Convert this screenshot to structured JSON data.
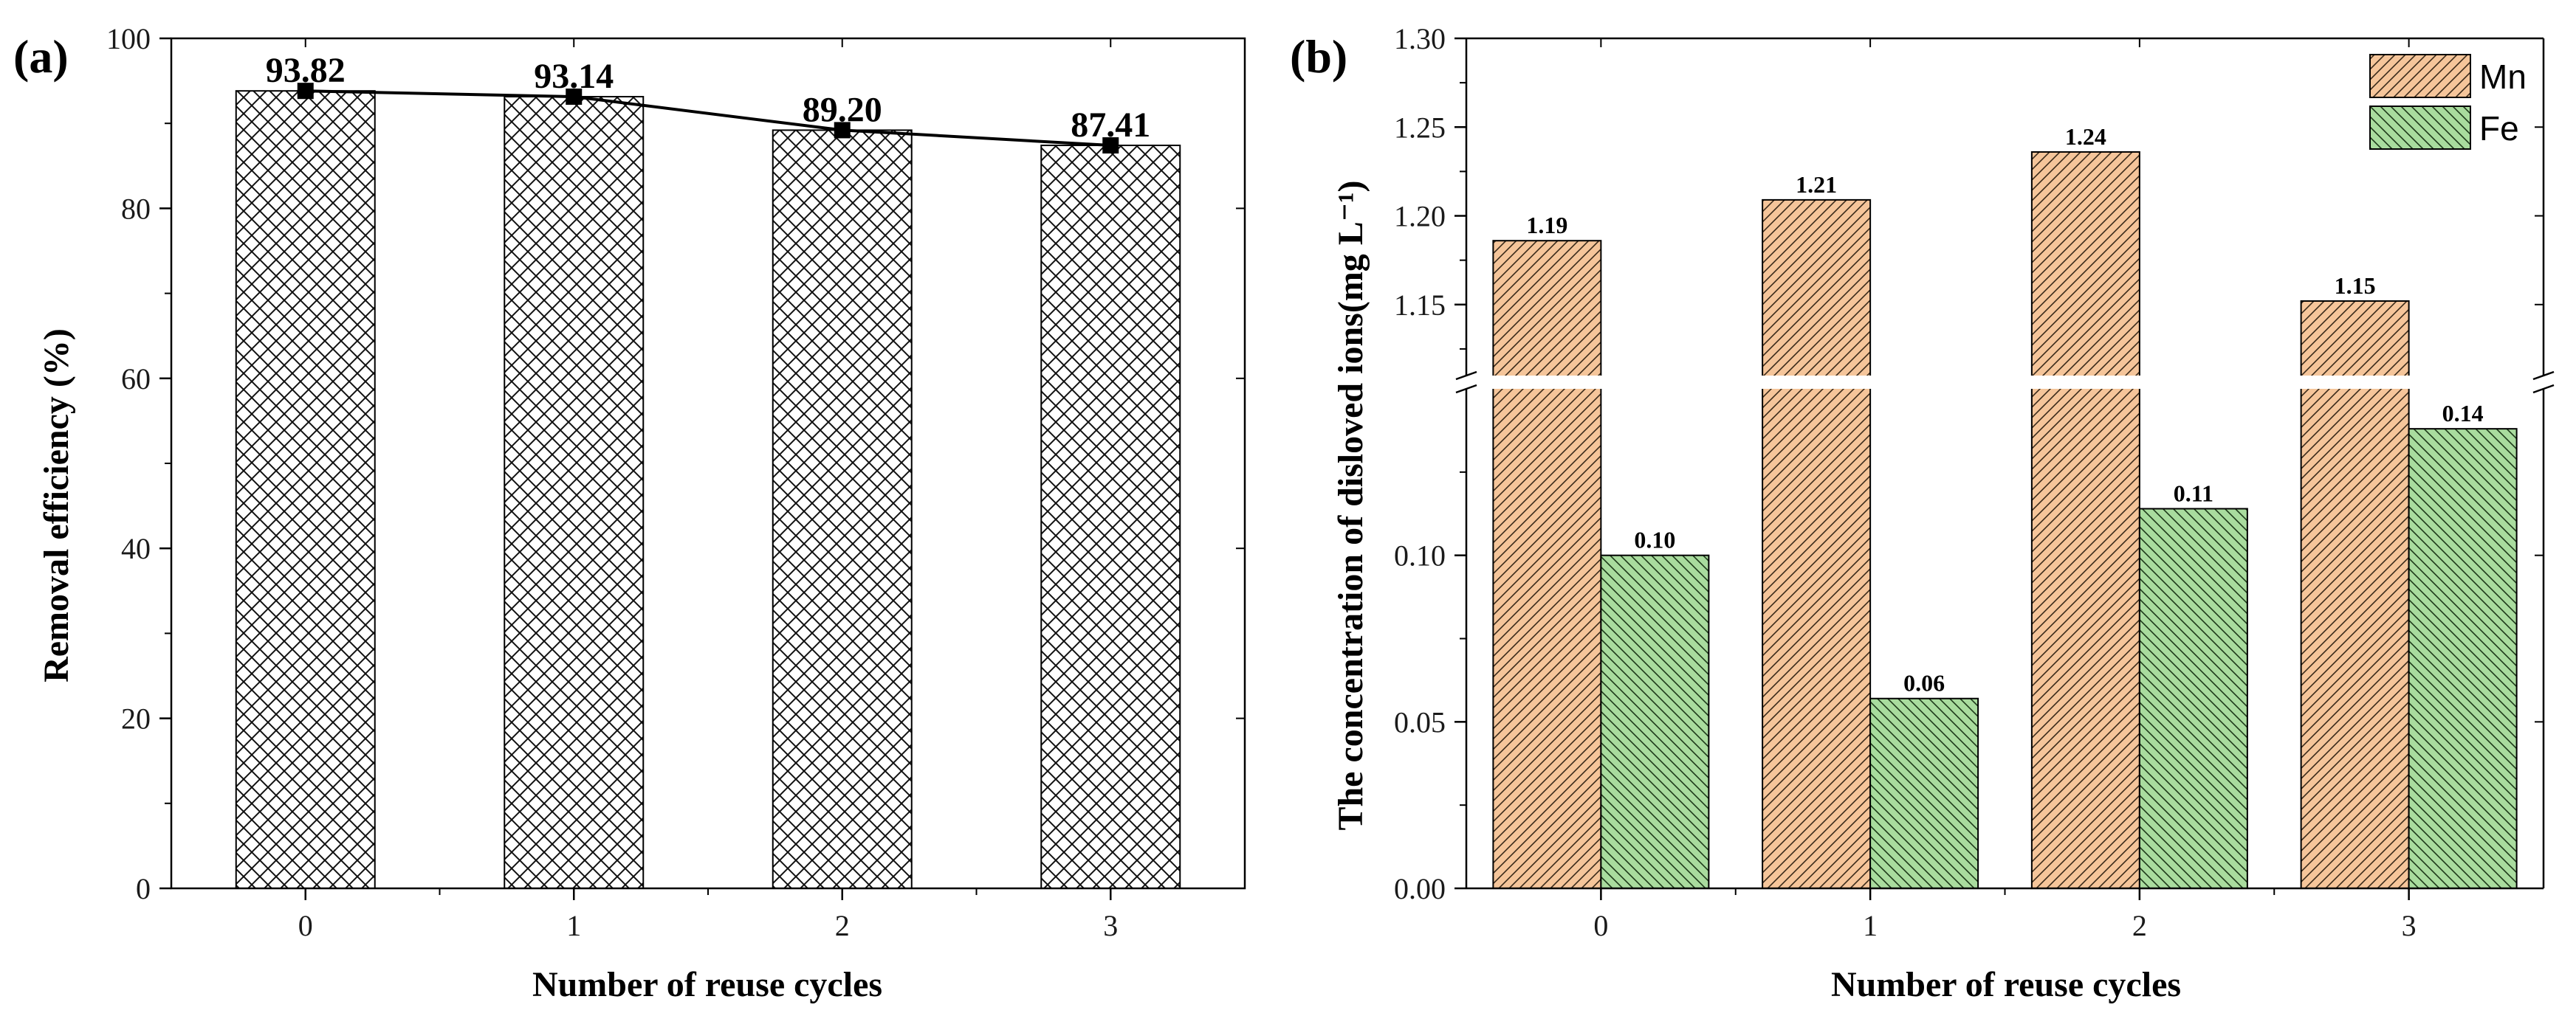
{
  "chart_data": [
    {
      "panel": "(a)",
      "type": "bar",
      "overlay": "line",
      "categories": [
        "0",
        "1",
        "2",
        "3"
      ],
      "values": [
        93.82,
        93.14,
        89.2,
        87.41
      ],
      "data_labels": [
        "93.82",
        "93.14",
        "89.20",
        "87.41"
      ],
      "xlabel": "Number of reuse cycles",
      "ylabel": "Removal efficiency (%)",
      "ylim": [
        0,
        100
      ],
      "yticks": [
        "0",
        "20",
        "40",
        "60",
        "80",
        "100"
      ],
      "bar_pattern": "crosshatch"
    },
    {
      "panel": "(b)",
      "type": "bar",
      "categories": [
        "0",
        "1",
        "2",
        "3"
      ],
      "series": [
        {
          "name": "Mn",
          "values": [
            1.186,
            1.209,
            1.236,
            1.152
          ],
          "labels": [
            "1.19",
            "1.21",
            "1.24",
            "1.15"
          ],
          "color": "#f5c59a"
        },
        {
          "name": "Fe",
          "values": [
            0.1,
            0.057,
            0.114,
            0.138
          ],
          "labels": [
            "0.10",
            "0.06",
            "0.11",
            "0.14"
          ],
          "color": "#a9dc9e"
        }
      ],
      "xlabel": "Number of reuse cycles",
      "ylabel": "The concentration of disloved ions(mg L⁻¹)",
      "axis_break": true,
      "lower_ylim": [
        0,
        0.15
      ],
      "upper_ylim": [
        1.11,
        1.3
      ],
      "lower_yticks": [
        "0.00",
        "0.05",
        "0.10"
      ],
      "upper_yticks": [
        "1.15",
        "1.20",
        "1.25",
        "1.30"
      ],
      "legend": [
        "Mn",
        "Fe"
      ],
      "legend_position": "top-right"
    }
  ]
}
